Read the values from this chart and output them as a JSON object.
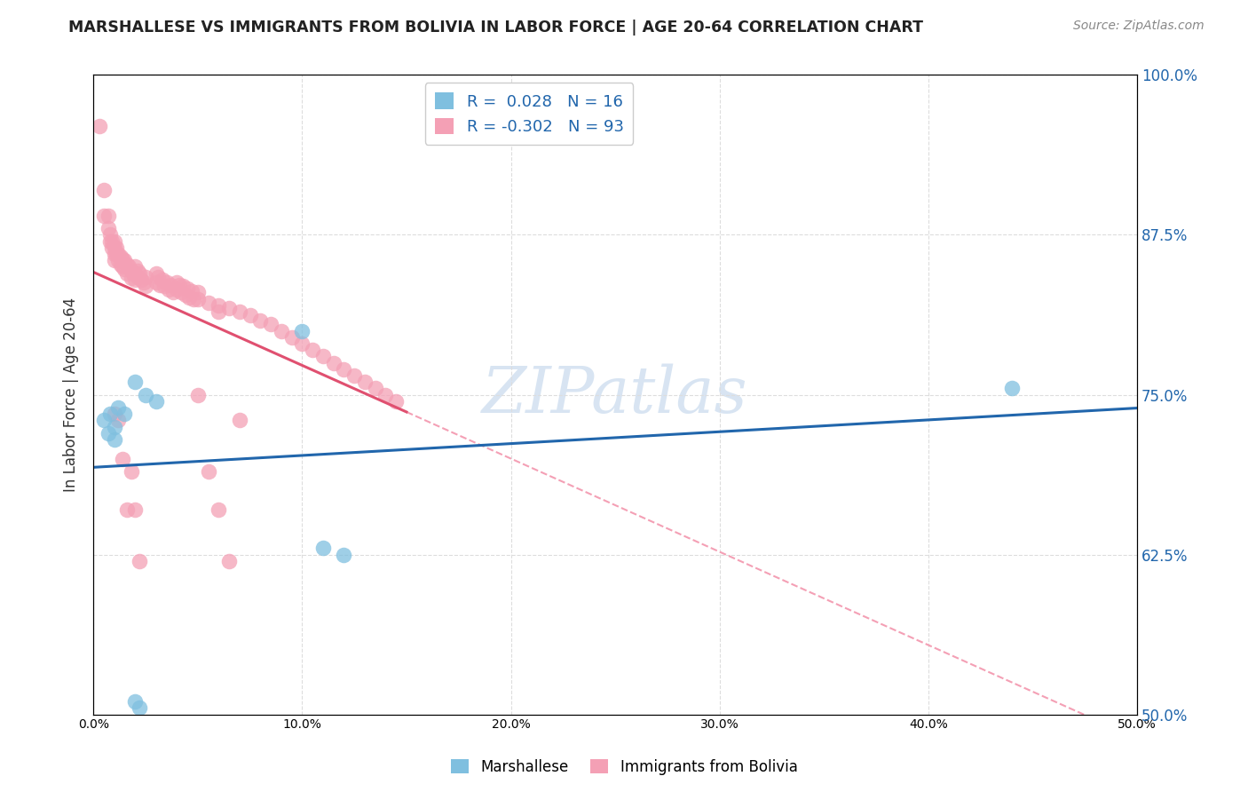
{
  "title": "MARSHALLESE VS IMMIGRANTS FROM BOLIVIA IN LABOR FORCE | AGE 20-64 CORRELATION CHART",
  "source": "Source: ZipAtlas.com",
  "ylabel": "In Labor Force | Age 20-64",
  "xlim": [
    0.0,
    0.5
  ],
  "ylim": [
    0.5,
    1.0
  ],
  "yticks": [
    0.5,
    0.625,
    0.75,
    0.875,
    1.0
  ],
  "xticks": [
    0.0,
    0.1,
    0.2,
    0.3,
    0.4,
    0.5
  ],
  "blue_color": "#7fbfdf",
  "pink_color": "#f4a0b5",
  "blue_line_color": "#2166ac",
  "pink_line_color": "#e05070",
  "dashed_line_color": "#f4a0b5",
  "R_blue": 0.028,
  "N_blue": 16,
  "R_pink": -0.302,
  "N_pink": 93,
  "legend_label_blue": "Marshallese",
  "legend_label_pink": "Immigrants from Bolivia",
  "watermark": "ZIPatlas",
  "blue_scatter_x": [
    0.005,
    0.007,
    0.008,
    0.01,
    0.01,
    0.012,
    0.015,
    0.02,
    0.025,
    0.03,
    0.1,
    0.11,
    0.12,
    0.02,
    0.022,
    0.44
  ],
  "blue_scatter_y": [
    0.73,
    0.72,
    0.735,
    0.725,
    0.715,
    0.74,
    0.735,
    0.76,
    0.75,
    0.745,
    0.8,
    0.63,
    0.625,
    0.51,
    0.505,
    0.755
  ],
  "pink_scatter_x": [
    0.003,
    0.005,
    0.005,
    0.007,
    0.007,
    0.008,
    0.008,
    0.009,
    0.009,
    0.01,
    0.01,
    0.01,
    0.01,
    0.011,
    0.011,
    0.012,
    0.012,
    0.013,
    0.013,
    0.014,
    0.014,
    0.015,
    0.015,
    0.016,
    0.016,
    0.017,
    0.018,
    0.018,
    0.019,
    0.02,
    0.02,
    0.02,
    0.021,
    0.021,
    0.022,
    0.023,
    0.024,
    0.025,
    0.025,
    0.03,
    0.03,
    0.031,
    0.032,
    0.033,
    0.034,
    0.035,
    0.036,
    0.037,
    0.038,
    0.04,
    0.04,
    0.041,
    0.042,
    0.043,
    0.044,
    0.045,
    0.046,
    0.047,
    0.048,
    0.05,
    0.05,
    0.055,
    0.06,
    0.06,
    0.065,
    0.07,
    0.075,
    0.08,
    0.085,
    0.09,
    0.095,
    0.1,
    0.105,
    0.11,
    0.115,
    0.12,
    0.125,
    0.13,
    0.135,
    0.14,
    0.145,
    0.01,
    0.012,
    0.014,
    0.016,
    0.018,
    0.02,
    0.022,
    0.05,
    0.055,
    0.06,
    0.065,
    0.07
  ],
  "pink_scatter_y": [
    0.96,
    0.91,
    0.89,
    0.89,
    0.88,
    0.87,
    0.875,
    0.87,
    0.865,
    0.87,
    0.865,
    0.86,
    0.855,
    0.865,
    0.86,
    0.86,
    0.855,
    0.858,
    0.852,
    0.856,
    0.85,
    0.855,
    0.848,
    0.852,
    0.845,
    0.85,
    0.847,
    0.841,
    0.845,
    0.85,
    0.845,
    0.84,
    0.847,
    0.842,
    0.845,
    0.84,
    0.838,
    0.842,
    0.835,
    0.845,
    0.838,
    0.842,
    0.836,
    0.84,
    0.835,
    0.838,
    0.832,
    0.836,
    0.83,
    0.838,
    0.832,
    0.836,
    0.83,
    0.835,
    0.828,
    0.833,
    0.826,
    0.831,
    0.825,
    0.83,
    0.825,
    0.822,
    0.82,
    0.815,
    0.818,
    0.815,
    0.812,
    0.808,
    0.805,
    0.8,
    0.795,
    0.79,
    0.785,
    0.78,
    0.775,
    0.77,
    0.765,
    0.76,
    0.755,
    0.75,
    0.745,
    0.735,
    0.73,
    0.7,
    0.66,
    0.69,
    0.66,
    0.62,
    0.75,
    0.69,
    0.66,
    0.62,
    0.73
  ],
  "background_color": "#ffffff",
  "grid_color": "#dddddd"
}
